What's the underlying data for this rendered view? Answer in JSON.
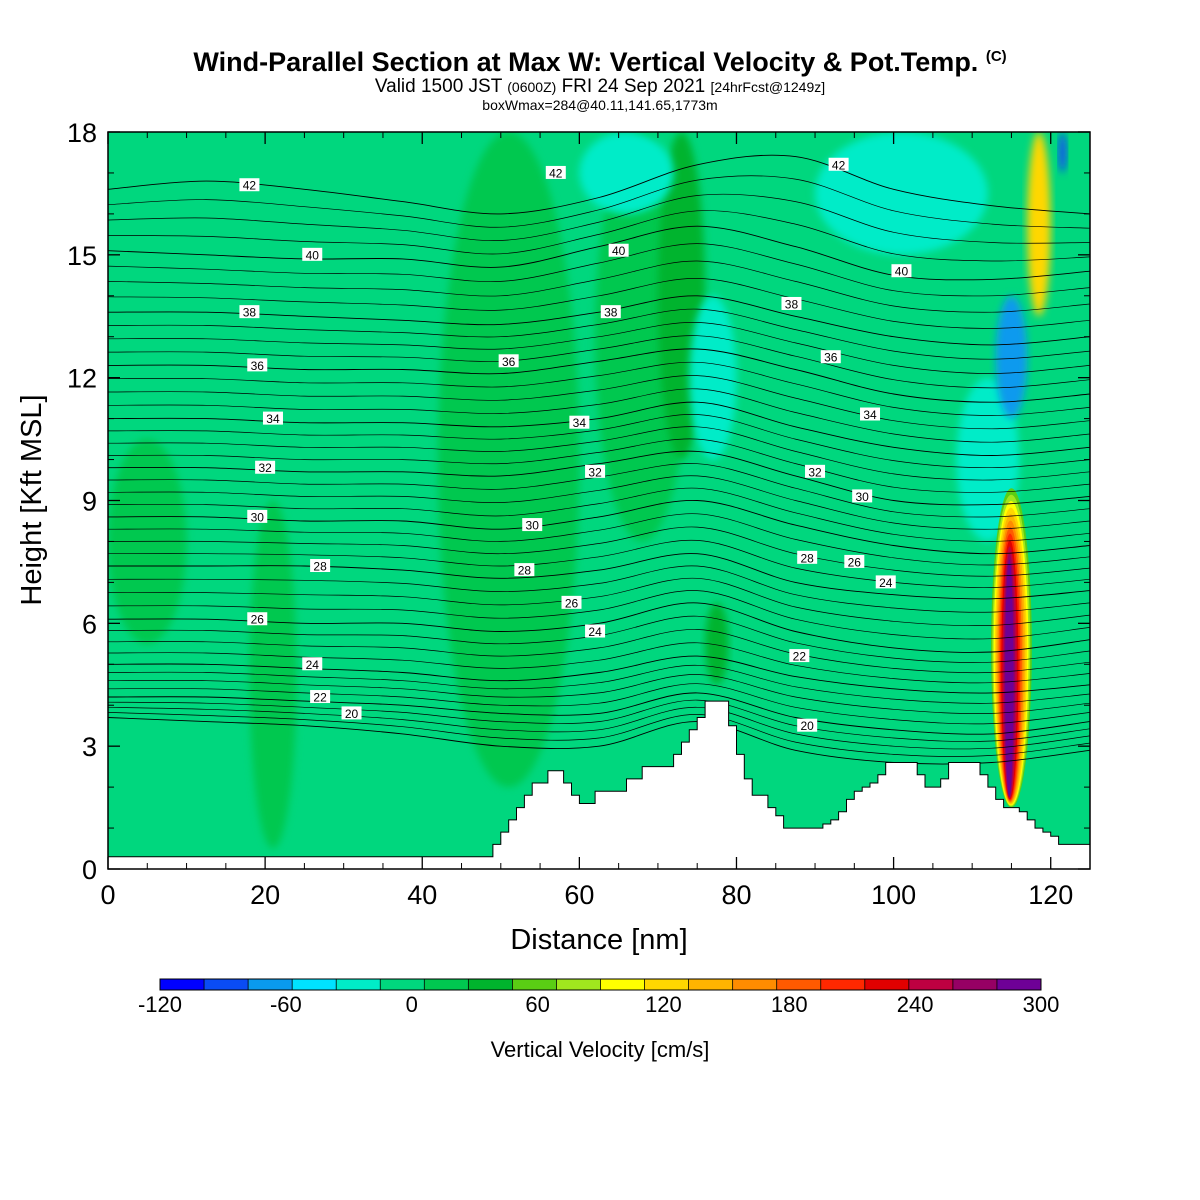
{
  "header": {
    "title": "Wind-Parallel Section at Max W: Vertical Velocity & Pot.Temp.",
    "title_mark": "(C)",
    "valid_prefix": "Valid 1500 JST",
    "valid_z": "(0600Z)",
    "valid_suffix": "FRI 24 Sep 2021",
    "forecast": "[24hrFcst@1249z]",
    "box_info": "boxWmax=284@40.11,141.65,1773m"
  },
  "chart_data": {
    "type": "heatmap",
    "xlabel": "Distance [nm]",
    "ylabel": "Height [Kft MSL]",
    "xlim": [
      0,
      125
    ],
    "ylim": [
      0,
      18
    ],
    "x_ticks": [
      0,
      20,
      40,
      60,
      80,
      100,
      120
    ],
    "y_ticks": [
      0,
      3,
      6,
      9,
      12,
      15,
      18
    ],
    "colorbar": {
      "label": "Vertical Velocity [cm/s]",
      "ticks": [
        "-120",
        "-60",
        "0",
        "60",
        "120",
        "180",
        "240",
        "300"
      ],
      "levels": [
        -120,
        -100,
        -80,
        -60,
        -40,
        -20,
        0,
        20,
        40,
        60,
        80,
        100,
        120,
        140,
        160,
        180,
        200,
        220,
        240,
        260,
        280,
        300
      ],
      "colors": [
        "#0000ff",
        "#0a4cf5",
        "#0a9aee",
        "#00e2ff",
        "#00ecc8",
        "#00d77e",
        "#00c850",
        "#00b42d",
        "#5acd14",
        "#a0e61e",
        "#ffff00",
        "#ffd700",
        "#ffb400",
        "#ff8c00",
        "#ff5a00",
        "#ff2800",
        "#e10000",
        "#be0041",
        "#960064",
        "#6e0096"
      ]
    },
    "background_color": "#00d77e",
    "terrain": [
      [
        0,
        0.3
      ],
      [
        48,
        0.3
      ],
      [
        49,
        0.6
      ],
      [
        50,
        0.9
      ],
      [
        51,
        1.2
      ],
      [
        52,
        1.5
      ],
      [
        53,
        1.8
      ],
      [
        54,
        2.1
      ],
      [
        56,
        2.4
      ],
      [
        58,
        2.1
      ],
      [
        59,
        1.8
      ],
      [
        60,
        1.6
      ],
      [
        62,
        1.9
      ],
      [
        65,
        1.9
      ],
      [
        66,
        2.2
      ],
      [
        68,
        2.5
      ],
      [
        70,
        2.5
      ],
      [
        72,
        2.8
      ],
      [
        73,
        3.1
      ],
      [
        74,
        3.4
      ],
      [
        75,
        3.7
      ],
      [
        76,
        4.1
      ],
      [
        78,
        4.1
      ],
      [
        79,
        3.5
      ],
      [
        80,
        2.8
      ],
      [
        81,
        2.2
      ],
      [
        82,
        1.8
      ],
      [
        84,
        1.5
      ],
      [
        85,
        1.3
      ],
      [
        86,
        1.0
      ],
      [
        88,
        1.0
      ],
      [
        90,
        1.0
      ],
      [
        91,
        1.1
      ],
      [
        92,
        1.2
      ],
      [
        93,
        1.4
      ],
      [
        94,
        1.7
      ],
      [
        95,
        1.9
      ],
      [
        96,
        2.0
      ],
      [
        97,
        2.1
      ],
      [
        98,
        2.3
      ],
      [
        99,
        2.6
      ],
      [
        102,
        2.6
      ],
      [
        103,
        2.3
      ],
      [
        104,
        2.0
      ],
      [
        106,
        2.2
      ],
      [
        107,
        2.6
      ],
      [
        110,
        2.6
      ],
      [
        111,
        2.3
      ],
      [
        112,
        2.0
      ],
      [
        113,
        1.7
      ],
      [
        114,
        1.5
      ],
      [
        115,
        1.5
      ],
      [
        116,
        1.4
      ],
      [
        117,
        1.2
      ],
      [
        118,
        1.0
      ],
      [
        119,
        0.9
      ],
      [
        120,
        0.8
      ],
      [
        121,
        0.6
      ],
      [
        122,
        0.6
      ],
      [
        123,
        0.6
      ],
      [
        124,
        0.6
      ],
      [
        125,
        0.6
      ]
    ],
    "updraft_core": {
      "x_nm": 115,
      "base_kft": 1.5,
      "top_kft": 9.3,
      "max_cm_s": 284,
      "layers_cm_s": [
        40,
        60,
        80,
        100,
        120,
        140,
        160,
        180,
        200,
        220,
        240,
        260,
        280
      ]
    },
    "w_regions": [
      {
        "value_cm_s": 10,
        "x": [
          0,
          10
        ],
        "y": [
          5.5,
          10.5
        ]
      },
      {
        "value_cm_s": 10,
        "x": [
          18,
          24
        ],
        "y": [
          0.5,
          9
        ]
      },
      {
        "value_cm_s": 10,
        "x": [
          42,
          60
        ],
        "y": [
          2,
          18
        ]
      },
      {
        "value_cm_s": 10,
        "x": [
          62,
          74
        ],
        "y": [
          8,
          18
        ]
      },
      {
        "value_cm_s": 30,
        "x": [
          70,
          76
        ],
        "y": [
          10,
          18
        ]
      },
      {
        "value_cm_s": -40,
        "x": [
          74,
          80
        ],
        "y": [
          10,
          14
        ]
      },
      {
        "value_cm_s": -30,
        "x": [
          60,
          72
        ],
        "y": [
          16,
          18
        ]
      },
      {
        "value_cm_s": -40,
        "x": [
          90,
          112
        ],
        "y": [
          15,
          18
        ]
      },
      {
        "value_cm_s": -30,
        "x": [
          108,
          116
        ],
        "y": [
          8,
          12
        ]
      },
      {
        "value_cm_s": -70,
        "x": [
          113,
          117
        ],
        "y": [
          11,
          14
        ]
      },
      {
        "value_cm_s": -90,
        "x": [
          121,
          122
        ],
        "y": [
          17,
          18
        ]
      },
      {
        "value_cm_s": 110,
        "x": [
          117,
          120
        ],
        "y": [
          13.5,
          18
        ]
      },
      {
        "value_cm_s": 30,
        "x": [
          76,
          79
        ],
        "y": [
          4.5,
          6.5
        ]
      }
    ],
    "theta_contours": [
      {
        "label": "42",
        "kft": [
          16.6,
          16.8,
          16.6,
          16.3,
          16.0,
          16.4,
          17.2,
          17.4,
          16.6,
          16.2,
          16.0
        ]
      },
      {
        "label": "40",
        "kft": [
          15.1,
          15.0,
          14.9,
          14.9,
          14.7,
          15.2,
          15.7,
          15.2,
          14.5,
          14.4,
          14.6
        ]
      },
      {
        "label": "38",
        "kft": [
          13.6,
          13.6,
          13.5,
          13.4,
          13.3,
          13.6,
          14.0,
          13.5,
          13.0,
          12.8,
          13.0
        ]
      },
      {
        "label": "36",
        "kft": [
          12.3,
          12.3,
          12.2,
          12.2,
          12.1,
          12.4,
          12.7,
          12.2,
          11.6,
          11.4,
          11.6
        ]
      },
      {
        "label": "34",
        "kft": [
          11.0,
          11.0,
          10.9,
          10.9,
          10.8,
          11.0,
          11.4,
          10.8,
          10.3,
          10.1,
          10.3
        ]
      },
      {
        "label": "32",
        "kft": [
          9.8,
          9.8,
          9.7,
          9.7,
          9.6,
          9.9,
          10.2,
          9.6,
          9.0,
          8.9,
          9.1
        ]
      },
      {
        "label": "30",
        "kft": [
          8.6,
          8.6,
          8.5,
          8.5,
          8.3,
          8.6,
          9.0,
          8.4,
          7.9,
          7.7,
          7.9
        ]
      },
      {
        "label": "28",
        "kft": [
          7.4,
          7.4,
          7.4,
          7.3,
          7.1,
          7.3,
          7.7,
          7.0,
          6.7,
          6.6,
          6.8
        ]
      },
      {
        "label": "26",
        "kft": [
          6.1,
          6.1,
          6.0,
          6.0,
          5.8,
          6.0,
          6.5,
          5.8,
          5.4,
          5.3,
          5.6
        ]
      },
      {
        "label": "24",
        "kft": [
          5.0,
          5.0,
          4.9,
          4.8,
          4.6,
          4.8,
          5.2,
          4.7,
          4.4,
          4.3,
          4.5
        ]
      },
      {
        "label": "22",
        "kft": [
          4.2,
          4.2,
          4.1,
          4.0,
          3.8,
          3.8,
          4.3,
          3.7,
          3.4,
          3.3,
          3.6
        ]
      },
      {
        "label": "20",
        "kft": [
          3.7,
          3.6,
          3.5,
          3.3,
          3.0,
          3.0,
          3.6,
          2.9,
          2.6,
          2.6,
          2.9
        ]
      }
    ],
    "theta_label_positions": [
      {
        "label": "42",
        "x": 18,
        "y": 16.7
      },
      {
        "label": "42",
        "x": 57,
        "y": 17.0
      },
      {
        "label": "42",
        "x": 93,
        "y": 17.2
      },
      {
        "label": "40",
        "x": 26,
        "y": 15.0
      },
      {
        "label": "40",
        "x": 65,
        "y": 15.1
      },
      {
        "label": "40",
        "x": 101,
        "y": 14.6
      },
      {
        "label": "38",
        "x": 18,
        "y": 13.6
      },
      {
        "label": "38",
        "x": 64,
        "y": 13.6
      },
      {
        "label": "38",
        "x": 87,
        "y": 13.8
      },
      {
        "label": "36",
        "x": 19,
        "y": 12.3
      },
      {
        "label": "36",
        "x": 51,
        "y": 12.4
      },
      {
        "label": "36",
        "x": 92,
        "y": 12.5
      },
      {
        "label": "34",
        "x": 21,
        "y": 11.0
      },
      {
        "label": "34",
        "x": 60,
        "y": 10.9
      },
      {
        "label": "34",
        "x": 97,
        "y": 11.1
      },
      {
        "label": "32",
        "x": 20,
        "y": 9.8
      },
      {
        "label": "32",
        "x": 62,
        "y": 9.7
      },
      {
        "label": "32",
        "x": 90,
        "y": 9.7
      },
      {
        "label": "30",
        "x": 19,
        "y": 8.6
      },
      {
        "label": "30",
        "x": 54,
        "y": 8.4
      },
      {
        "label": "30",
        "x": 96,
        "y": 9.1
      },
      {
        "label": "28",
        "x": 27,
        "y": 7.4
      },
      {
        "label": "28",
        "x": 53,
        "y": 7.3
      },
      {
        "label": "28",
        "x": 89,
        "y": 7.6
      },
      {
        "label": "26",
        "x": 19,
        "y": 6.1
      },
      {
        "label": "26",
        "x": 59,
        "y": 6.5
      },
      {
        "label": "26",
        "x": 95,
        "y": 7.5
      },
      {
        "label": "24",
        "x": 26,
        "y": 5.0
      },
      {
        "label": "24",
        "x": 62,
        "y": 5.8
      },
      {
        "label": "24",
        "x": 99,
        "y": 7.0
      },
      {
        "label": "22",
        "x": 27,
        "y": 4.2
      },
      {
        "label": "22",
        "x": 88,
        "y": 5.2
      },
      {
        "label": "20",
        "x": 31,
        "y": 3.8
      },
      {
        "label": "20",
        "x": 89,
        "y": 3.5
      }
    ]
  }
}
